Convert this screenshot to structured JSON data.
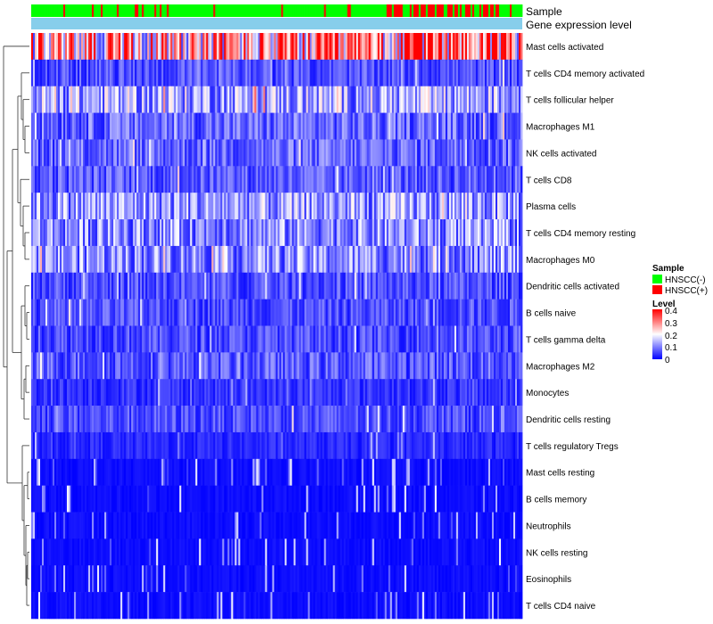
{
  "chart_data": {
    "type": "heatmap",
    "annotation_labels": [
      "Sample",
      "Gene expression level"
    ],
    "rows": [
      {
        "label": "Mast cells activated",
        "mean": 0.25
      },
      {
        "label": "T cells CD4 memory activated",
        "mean": 0.06
      },
      {
        "label": "T cells follicular helper",
        "mean": 0.13
      },
      {
        "label": "Macrophages M1",
        "mean": 0.08
      },
      {
        "label": "NK cells activated",
        "mean": 0.08
      },
      {
        "label": "T cells CD8",
        "mean": 0.07
      },
      {
        "label": "Plasma cells",
        "mean": 0.12
      },
      {
        "label": "T cells CD4 memory resting",
        "mean": 0.11
      },
      {
        "label": "Macrophages M0",
        "mean": 0.11
      },
      {
        "label": "Dendritic cells activated",
        "mean": 0.06
      },
      {
        "label": "B cells naive",
        "mean": 0.06
      },
      {
        "label": "T cells gamma delta",
        "mean": 0.06
      },
      {
        "label": "Macrophages M2",
        "mean": 0.07
      },
      {
        "label": "Monocytes",
        "mean": 0.04
      },
      {
        "label": "Dendritic cells resting",
        "mean": 0.06
      },
      {
        "label": "T cells regulatory  Tregs",
        "mean": 0.03
      },
      {
        "label": "Mast cells resting",
        "mean": 0.01
      },
      {
        "label": "B cells memory",
        "mean": 0.01
      },
      {
        "label": "Neutrophils",
        "mean": 0.015
      },
      {
        "label": "NK cells resting",
        "mean": 0.01
      },
      {
        "label": "Eosinophils",
        "mean": 0.005
      },
      {
        "label": "T cells CD4 naive",
        "mean": 0.01
      }
    ],
    "n_samples": 275,
    "sample_groups": [
      "HNSCC(-)",
      "HNSCC(+)"
    ],
    "legend": {
      "sample_title": "Sample",
      "sample_items": [
        {
          "label": "HNSCC(-)",
          "color": "#00ff00"
        },
        {
          "label": "HNSCC(+)",
          "color": "#ff0000"
        }
      ],
      "level_title": "Level",
      "level_ticks": [
        "0.4",
        "0.3",
        "0.2",
        "0.1",
        "0"
      ],
      "level_range": [
        0,
        0.4
      ]
    },
    "colors": {
      "low": "#0000ff",
      "mid": "#ffffff",
      "high": "#ff0000",
      "expression_bar": "#87ceeb"
    }
  }
}
